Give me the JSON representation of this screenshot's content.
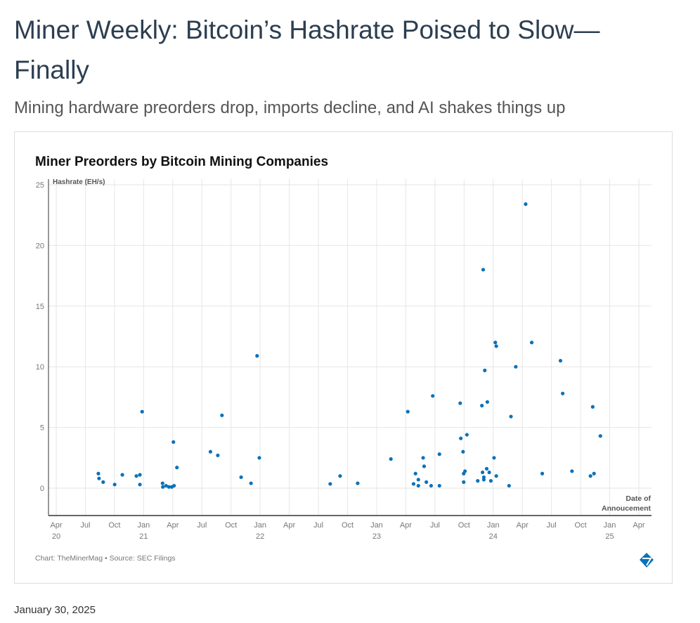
{
  "article": {
    "title": "Miner Weekly: Bitcoin’s Hashrate Poised to Slow—Finally",
    "subtitle": "Mining hardware preorders drop, imports decline, and AI shakes things up",
    "date": "January 30, 2025"
  },
  "chart_data": {
    "type": "scatter",
    "title": "Miner Preorders by Bitcoin Mining Companies",
    "ylabel": "Hashrate (EH/s)",
    "xlabel": "Date of Annoucement",
    "xlabel_lines": [
      "Date of",
      "Annoucement"
    ],
    "source": "Chart: TheMinerMag • Source: SEC Filings",
    "ylim": [
      0,
      25
    ],
    "xlim": [
      "2020-04-01",
      "2025-04-01"
    ],
    "yticks": [
      "0",
      "5",
      "10",
      "15",
      "20",
      "25"
    ],
    "xticks": [
      [
        "Apr",
        "20"
      ],
      [
        "Jul",
        ""
      ],
      [
        "Oct",
        ""
      ],
      [
        "Jan",
        "21"
      ],
      [
        "Apr",
        ""
      ],
      [
        "Jul",
        ""
      ],
      [
        "Oct",
        ""
      ],
      [
        "Jan",
        "22"
      ],
      [
        "Apr",
        ""
      ],
      [
        "Jul",
        ""
      ],
      [
        "Oct",
        ""
      ],
      [
        "Jan",
        "23"
      ],
      [
        "Apr",
        ""
      ],
      [
        "Jul",
        ""
      ],
      [
        "Oct",
        ""
      ],
      [
        "Jan",
        "24"
      ],
      [
        "Apr",
        ""
      ],
      [
        "Jul",
        ""
      ],
      [
        "Oct",
        ""
      ],
      [
        "Jan",
        "25"
      ],
      [
        "Apr",
        ""
      ]
    ],
    "grid": true,
    "color": "#0b72b9",
    "points": [
      [
        "2020-08-11",
        1.2
      ],
      [
        "2020-08-13",
        0.8
      ],
      [
        "2020-08-26",
        0.5
      ],
      [
        "2020-10-01",
        0.3
      ],
      [
        "2020-10-25",
        1.1
      ],
      [
        "2020-12-08",
        1.0
      ],
      [
        "2020-12-19",
        1.1
      ],
      [
        "2020-12-19",
        0.3
      ],
      [
        "2020-12-26",
        6.3
      ],
      [
        "2021-02-28",
        0.4
      ],
      [
        "2021-03-01",
        0.1
      ],
      [
        "2021-03-11",
        0.2
      ],
      [
        "2021-03-20",
        0.1
      ],
      [
        "2021-03-29",
        0.1
      ],
      [
        "2021-04-05",
        0.2
      ],
      [
        "2021-04-03",
        3.8
      ],
      [
        "2021-04-14",
        1.7
      ],
      [
        "2021-07-28",
        3.0
      ],
      [
        "2021-08-20",
        2.7
      ],
      [
        "2021-09-02",
        6.0
      ],
      [
        "2021-11-01",
        0.9
      ],
      [
        "2021-12-02",
        0.4
      ],
      [
        "2021-12-21",
        10.9
      ],
      [
        "2021-12-28",
        2.5
      ],
      [
        "2022-08-07",
        0.35
      ],
      [
        "2022-09-07",
        1.0
      ],
      [
        "2022-11-01",
        0.4
      ],
      [
        "2023-02-13",
        2.4
      ],
      [
        "2023-04-07",
        6.3
      ],
      [
        "2023-04-25",
        0.35
      ],
      [
        "2023-05-01",
        1.2
      ],
      [
        "2023-05-10",
        0.7
      ],
      [
        "2023-05-10",
        0.2
      ],
      [
        "2023-05-25",
        2.5
      ],
      [
        "2023-05-28",
        1.8
      ],
      [
        "2023-06-04",
        0.5
      ],
      [
        "2023-06-19",
        0.2
      ],
      [
        "2023-06-24",
        7.6
      ],
      [
        "2023-07-15",
        0.2
      ],
      [
        "2023-07-15",
        2.8
      ],
      [
        "2023-09-18",
        7.0
      ],
      [
        "2023-09-20",
        4.1
      ],
      [
        "2023-09-27",
        3.0
      ],
      [
        "2023-09-29",
        0.5
      ],
      [
        "2023-09-29",
        1.2
      ],
      [
        "2023-10-03",
        1.4
      ],
      [
        "2023-10-09",
        4.4
      ],
      [
        "2023-11-12",
        0.6
      ],
      [
        "2023-11-25",
        6.8
      ],
      [
        "2023-11-27",
        1.3
      ],
      [
        "2023-11-29",
        18.0
      ],
      [
        "2023-12-01",
        0.7
      ],
      [
        "2023-12-01",
        0.9
      ],
      [
        "2023-12-04",
        9.7
      ],
      [
        "2023-12-10",
        1.6
      ],
      [
        "2023-12-12",
        7.1
      ],
      [
        "2023-12-18",
        1.3
      ],
      [
        "2023-12-23",
        0.6
      ],
      [
        "2024-01-02",
        2.5
      ],
      [
        "2024-01-06",
        12.0
      ],
      [
        "2024-01-09",
        11.7
      ],
      [
        "2024-01-09",
        1.0
      ],
      [
        "2024-02-18",
        0.2
      ],
      [
        "2024-02-24",
        5.9
      ],
      [
        "2024-03-10",
        10.0
      ],
      [
        "2024-04-10",
        23.4
      ],
      [
        "2024-04-29",
        12.0
      ],
      [
        "2024-06-01",
        1.2
      ],
      [
        "2024-07-28",
        10.5
      ],
      [
        "2024-08-04",
        7.8
      ],
      [
        "2024-09-02",
        1.4
      ],
      [
        "2024-10-30",
        1.0
      ],
      [
        "2024-11-06",
        6.7
      ],
      [
        "2024-11-10",
        1.2
      ],
      [
        "2024-11-30",
        4.3
      ]
    ]
  }
}
